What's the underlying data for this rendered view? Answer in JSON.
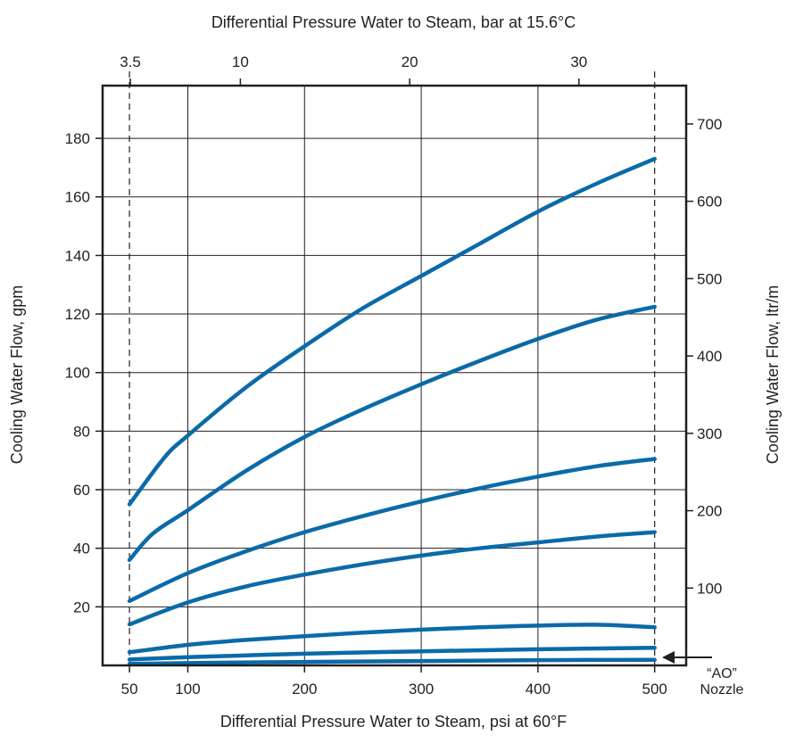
{
  "chart_data": {
    "type": "line",
    "top_axis_title": "Differential Pressure Water to Steam, bar at 15.6°C",
    "bottom_axis_title": "Differential Pressure Water to Steam, psi at 60°F",
    "left_axis_title": "Cooling Water Flow, gpm",
    "right_axis_title": "Cooling Water Flow, ltr/m",
    "x_psi_range": [
      27,
      527
    ],
    "y_gpm_range": [
      0,
      198
    ],
    "grid": true,
    "bottom_ticks": [
      50,
      100,
      200,
      300,
      400,
      500
    ],
    "bottom_tick_labels": [
      "50",
      "100",
      "200",
      "300",
      "400",
      "500"
    ],
    "left_ticks": [
      20,
      40,
      60,
      80,
      100,
      120,
      140,
      160,
      180
    ],
    "left_tick_labels": [
      "20",
      "40",
      "60",
      "80",
      "100",
      "120",
      "140",
      "160",
      "180"
    ],
    "top_ticks_bar": [
      3.5,
      10,
      20,
      30
    ],
    "top_tick_labels": [
      "3.5",
      "10",
      "20",
      "30"
    ],
    "right_ticks_ltrm": [
      100,
      200,
      300,
      400,
      500,
      600,
      700
    ],
    "right_tick_labels": [
      "100",
      "200",
      "300",
      "400",
      "500",
      "600",
      "700"
    ],
    "dashed_limits_psi": [
      50,
      500
    ],
    "series": [
      {
        "x": [
          50,
          80,
          100,
          150,
          200,
          250,
          300,
          350,
          400,
          450,
          500
        ],
        "y": [
          55,
          71,
          78.5,
          95,
          109,
          122,
          133,
          144,
          155,
          164.5,
          173
        ]
      },
      {
        "x": [
          50,
          70,
          100,
          150,
          200,
          250,
          300,
          350,
          400,
          450,
          500
        ],
        "y": [
          36,
          45,
          53,
          66.5,
          78,
          87.5,
          96,
          104,
          111.5,
          118,
          122.5
        ]
      },
      {
        "x": [
          50,
          100,
          150,
          200,
          250,
          300,
          350,
          400,
          450,
          500
        ],
        "y": [
          22,
          31.5,
          39,
          45.5,
          51,
          56,
          60.5,
          64.5,
          68,
          70.5
        ]
      },
      {
        "x": [
          50,
          100,
          150,
          200,
          250,
          300,
          350,
          400,
          450,
          500
        ],
        "y": [
          14,
          21.5,
          27,
          31,
          34.5,
          37.5,
          40,
          42,
          44,
          45.5
        ]
      },
      {
        "x": [
          50,
          100,
          150,
          200,
          250,
          300,
          350,
          400,
          450,
          500
        ],
        "y": [
          4.5,
          7,
          8.7,
          10,
          11.2,
          12.2,
          13,
          13.6,
          13.9,
          13
        ]
      },
      {
        "x": [
          50,
          100,
          200,
          300,
          400,
          500
        ],
        "y": [
          2,
          2.8,
          4,
          4.8,
          5.5,
          6
        ]
      },
      {
        "x": [
          50,
          100,
          200,
          300,
          400,
          500
        ],
        "y": [
          0.5,
          0.8,
          1.2,
          1.5,
          1.8,
          1.9
        ]
      }
    ],
    "annotation": {
      "line1": "“AO”",
      "line2": "Nozzle",
      "points_to_series": 7
    }
  },
  "colors": {
    "curve": "#0b6aa8",
    "axis": "#231f20",
    "grid": "#231f20"
  }
}
